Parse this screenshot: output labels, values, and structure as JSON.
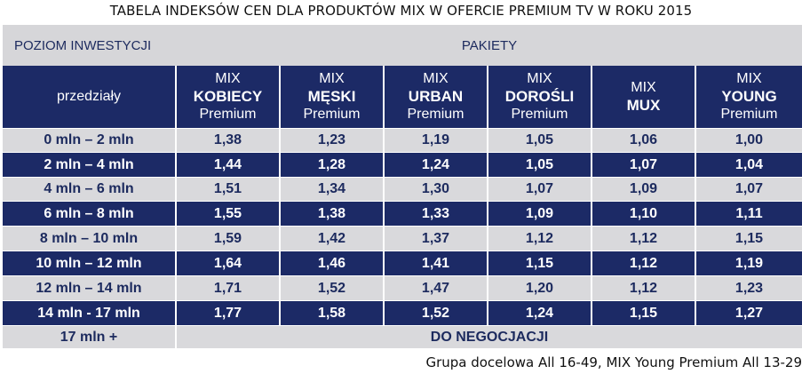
{
  "title": "TABELA INDEKSÓW CEN DLA PRODUKTÓW MIX W OFERCIE PREMIUM TV W ROKU 2015",
  "header": {
    "investment_level": "POZIOM INWESTYCJI",
    "packages": "PAKIETY",
    "ranges_label": "przedziały"
  },
  "columns": [
    {
      "l1": "MIX",
      "l2": "KOBIECY",
      "l3": "Premium"
    },
    {
      "l1": "MIX",
      "l2": "MĘSKI",
      "l3": "Premium"
    },
    {
      "l1": "MIX",
      "l2": "URBAN",
      "l3": "Premium"
    },
    {
      "l1": "MIX",
      "l2": "DOROŚLI",
      "l3": "Premium"
    },
    {
      "l1": "MIX",
      "l2": "MUX",
      "l3": ""
    },
    {
      "l1": "MIX",
      "l2": "YOUNG",
      "l3": "Premium"
    }
  ],
  "rows": [
    {
      "range": "0 mln – 2 mln",
      "values": [
        "1,38",
        "1,23",
        "1,19",
        "1,05",
        "1,06",
        "1,00"
      ]
    },
    {
      "range": "2 mln – 4 mln",
      "values": [
        "1,44",
        "1,28",
        "1,24",
        "1,05",
        "1,07",
        "1,04"
      ]
    },
    {
      "range": "4 mln – 6 mln",
      "values": [
        "1,51",
        "1,34",
        "1,30",
        "1,07",
        "1,09",
        "1,07"
      ]
    },
    {
      "range": "6 mln – 8 mln",
      "values": [
        "1,55",
        "1,38",
        "1,33",
        "1,09",
        "1,10",
        "1,11"
      ]
    },
    {
      "range": "8 mln – 10 mln",
      "values": [
        "1,59",
        "1,42",
        "1,37",
        "1,12",
        "1,12",
        "1,15"
      ]
    },
    {
      "range": "10 mln – 12 mln",
      "values": [
        "1,64",
        "1,46",
        "1,41",
        "1,15",
        "1,12",
        "1,19"
      ]
    },
    {
      "range": "12 mln – 14 mln",
      "values": [
        "1,71",
        "1,52",
        "1,47",
        "1,20",
        "1,12",
        "1,23"
      ]
    },
    {
      "range": "14 mln - 17 mln",
      "values": [
        "1,77",
        "1,58",
        "1,52",
        "1,24",
        "1,15",
        "1,27"
      ]
    }
  ],
  "last_row": {
    "range": "17 mln +",
    "note": "DO NEGOCJACJI"
  },
  "footnote": "Grupa docelowa All 16-49, MIX Young Premium All 13-29",
  "colors": {
    "dark_navy": "#1c2a66",
    "light_gray": "#d9d9dc",
    "header_gray": "#d6d6d9",
    "navy_text": "#1c2a5e"
  }
}
